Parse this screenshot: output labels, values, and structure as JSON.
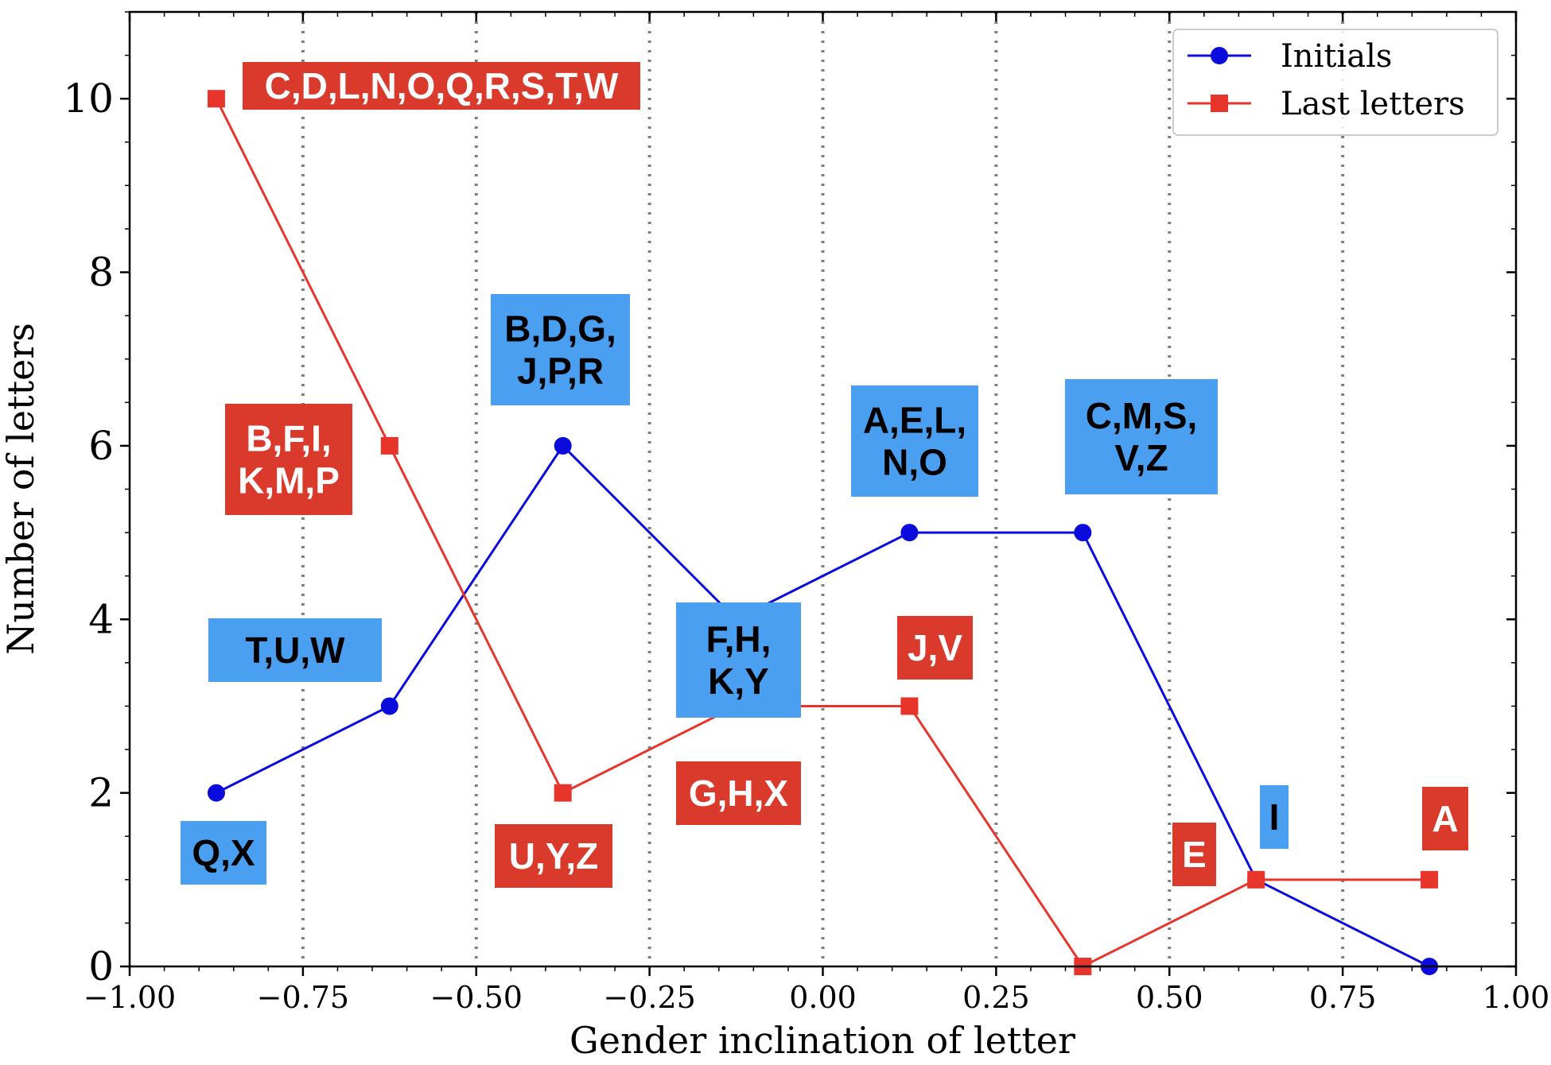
{
  "chart_data": {
    "type": "line",
    "xlabel": "Gender inclination of letter",
    "ylabel": "Number of letters",
    "xlim": [
      -1.0,
      1.0
    ],
    "ylim": [
      0,
      11
    ],
    "xticks": [
      -1.0,
      -0.75,
      -0.5,
      -0.25,
      0.0,
      0.25,
      0.5,
      0.75,
      1.0
    ],
    "xtick_labels": [
      "−1.00",
      "−0.75",
      "−0.50",
      "−0.25",
      "0.00",
      "0.25",
      "0.50",
      "0.75",
      "1.00"
    ],
    "yticks": [
      0,
      2,
      4,
      6,
      8,
      10
    ],
    "ytick_labels": [
      "0",
      "2",
      "4",
      "6",
      "8",
      "10"
    ],
    "vlines": [
      -0.75,
      -0.5,
      -0.25,
      0.0,
      0.25,
      0.5,
      0.75
    ],
    "legend_position": "top-right",
    "series": [
      {
        "name": "Initials",
        "color": "#0b0bdb",
        "marker": "circle",
        "x": [
          -0.875,
          -0.625,
          -0.375,
          -0.125,
          0.125,
          0.375,
          0.625,
          0.875
        ],
        "values": [
          2,
          3,
          6,
          4,
          5,
          5,
          1,
          0
        ]
      },
      {
        "name": "Last letters",
        "color": "#e8352b",
        "marker": "square",
        "x": [
          -0.875,
          -0.625,
          -0.375,
          -0.125,
          0.125,
          0.375,
          0.625,
          0.875
        ],
        "values": [
          10,
          6,
          2,
          3,
          3,
          0,
          1,
          1
        ]
      }
    ],
    "annotations": [
      {
        "series": "Last letters",
        "lines": [
          "C,D,L,N,O,Q,R,S,T,W"
        ]
      },
      {
        "series": "Last letters",
        "lines": [
          "B,F,I,",
          "K,M,P"
        ]
      },
      {
        "series": "Initials",
        "lines": [
          "B,D,G,",
          "J,P,R"
        ]
      },
      {
        "series": "Initials",
        "lines": [
          "T,U,W"
        ]
      },
      {
        "series": "Initials",
        "lines": [
          "Q,X"
        ]
      },
      {
        "series": "Last letters",
        "lines": [
          "U,Y,Z"
        ]
      },
      {
        "series": "Initials",
        "lines": [
          "F,H,",
          "K,Y"
        ]
      },
      {
        "series": "Last letters",
        "lines": [
          "G,H,X"
        ]
      },
      {
        "series": "Initials",
        "lines": [
          "A,E,L,",
          "N,O"
        ]
      },
      {
        "series": "Last letters",
        "lines": [
          "J,V"
        ]
      },
      {
        "series": "Initials",
        "lines": [
          "C,M,S,",
          "V,Z"
        ]
      },
      {
        "series": "Last letters",
        "lines": [
          "E"
        ]
      },
      {
        "series": "Initials",
        "lines": [
          "I"
        ]
      },
      {
        "series": "Last letters",
        "lines": [
          "A"
        ]
      }
    ],
    "annotation_colors": {
      "Initials": "#4a9ff0",
      "Last letters": "#d93a2b"
    },
    "annotation_text_colors": {
      "Initials": "#000000",
      "Last letters": "#ffffff"
    }
  }
}
